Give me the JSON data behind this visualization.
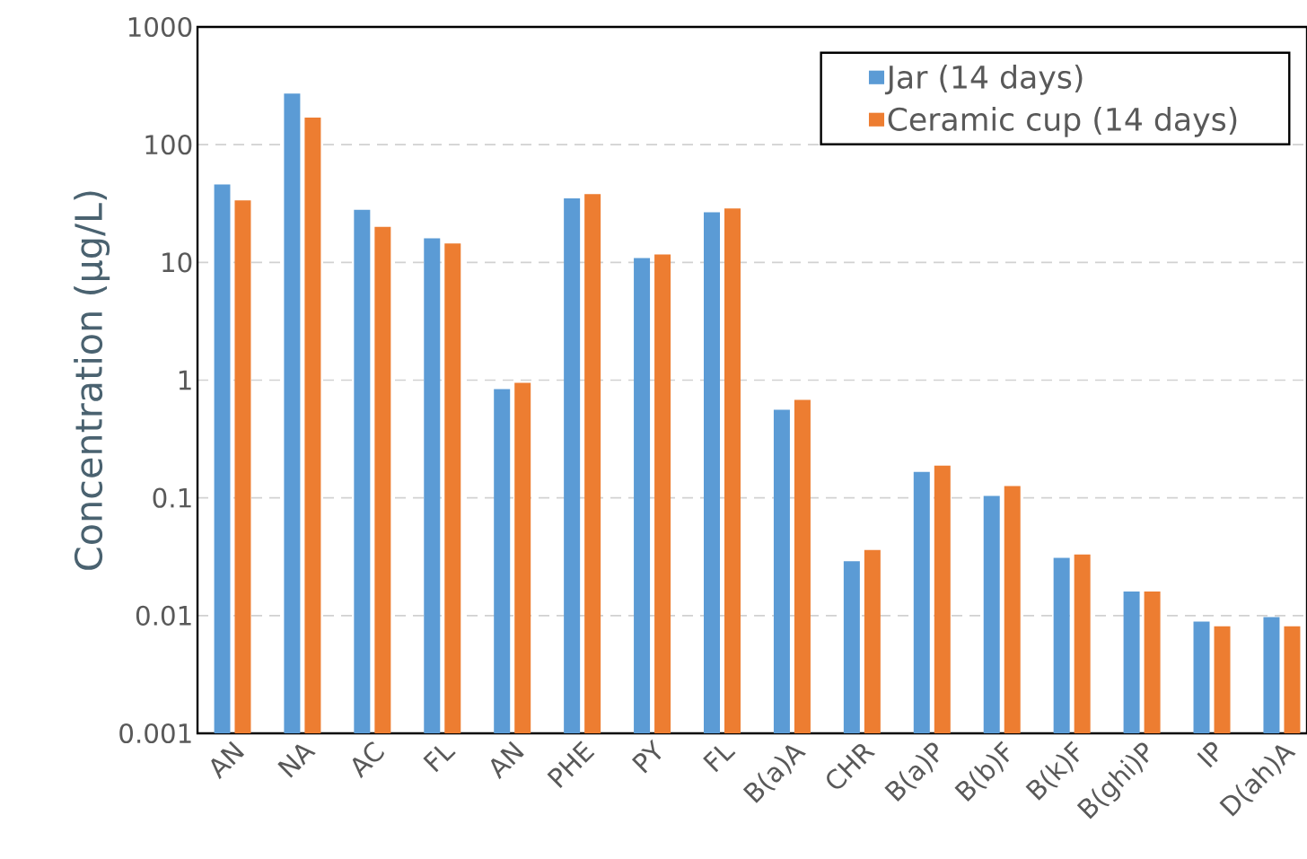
{
  "chart_data": {
    "type": "bar",
    "ylabel": "Concentration (µg/L)",
    "categories": [
      "AN",
      "NA",
      "AC",
      "FL",
      "AN",
      "PHE",
      "PY",
      "FL",
      "B(a)A",
      "CHR",
      "B(a)P",
      "B(b)F",
      "B(k)F",
      "B(ghi)P",
      "IP",
      "D(ah)A"
    ],
    "series": [
      {
        "name": "Jar (14 days)",
        "color": "#5b9bd5",
        "values": [
          46,
          272,
          28,
          16,
          0.84,
          35,
          10.9,
          26.7,
          0.56,
          0.029,
          0.166,
          0.104,
          0.031,
          0.016,
          0.0089,
          0.0097
        ]
      },
      {
        "name": "Ceramic cup (14 days)",
        "color": "#ed7d31",
        "values": [
          33.6,
          170,
          20,
          14.5,
          0.95,
          38,
          11.7,
          28.7,
          0.68,
          0.036,
          0.188,
          0.126,
          0.033,
          0.016,
          0.0081,
          0.0081
        ]
      }
    ],
    "log": "y",
    "ylim": [
      0.001,
      1000
    ],
    "yticks": [
      {
        "value": 0.001,
        "label": "0.001"
      },
      {
        "value": 0.01,
        "label": "0.01"
      },
      {
        "value": 0.1,
        "label": "0.1"
      },
      {
        "value": 1,
        "label": "1"
      },
      {
        "value": 10,
        "label": "10"
      },
      {
        "value": 100,
        "label": "100"
      },
      {
        "value": 1000,
        "label": "1000"
      }
    ],
    "grid": "y",
    "legend": "top right"
  }
}
